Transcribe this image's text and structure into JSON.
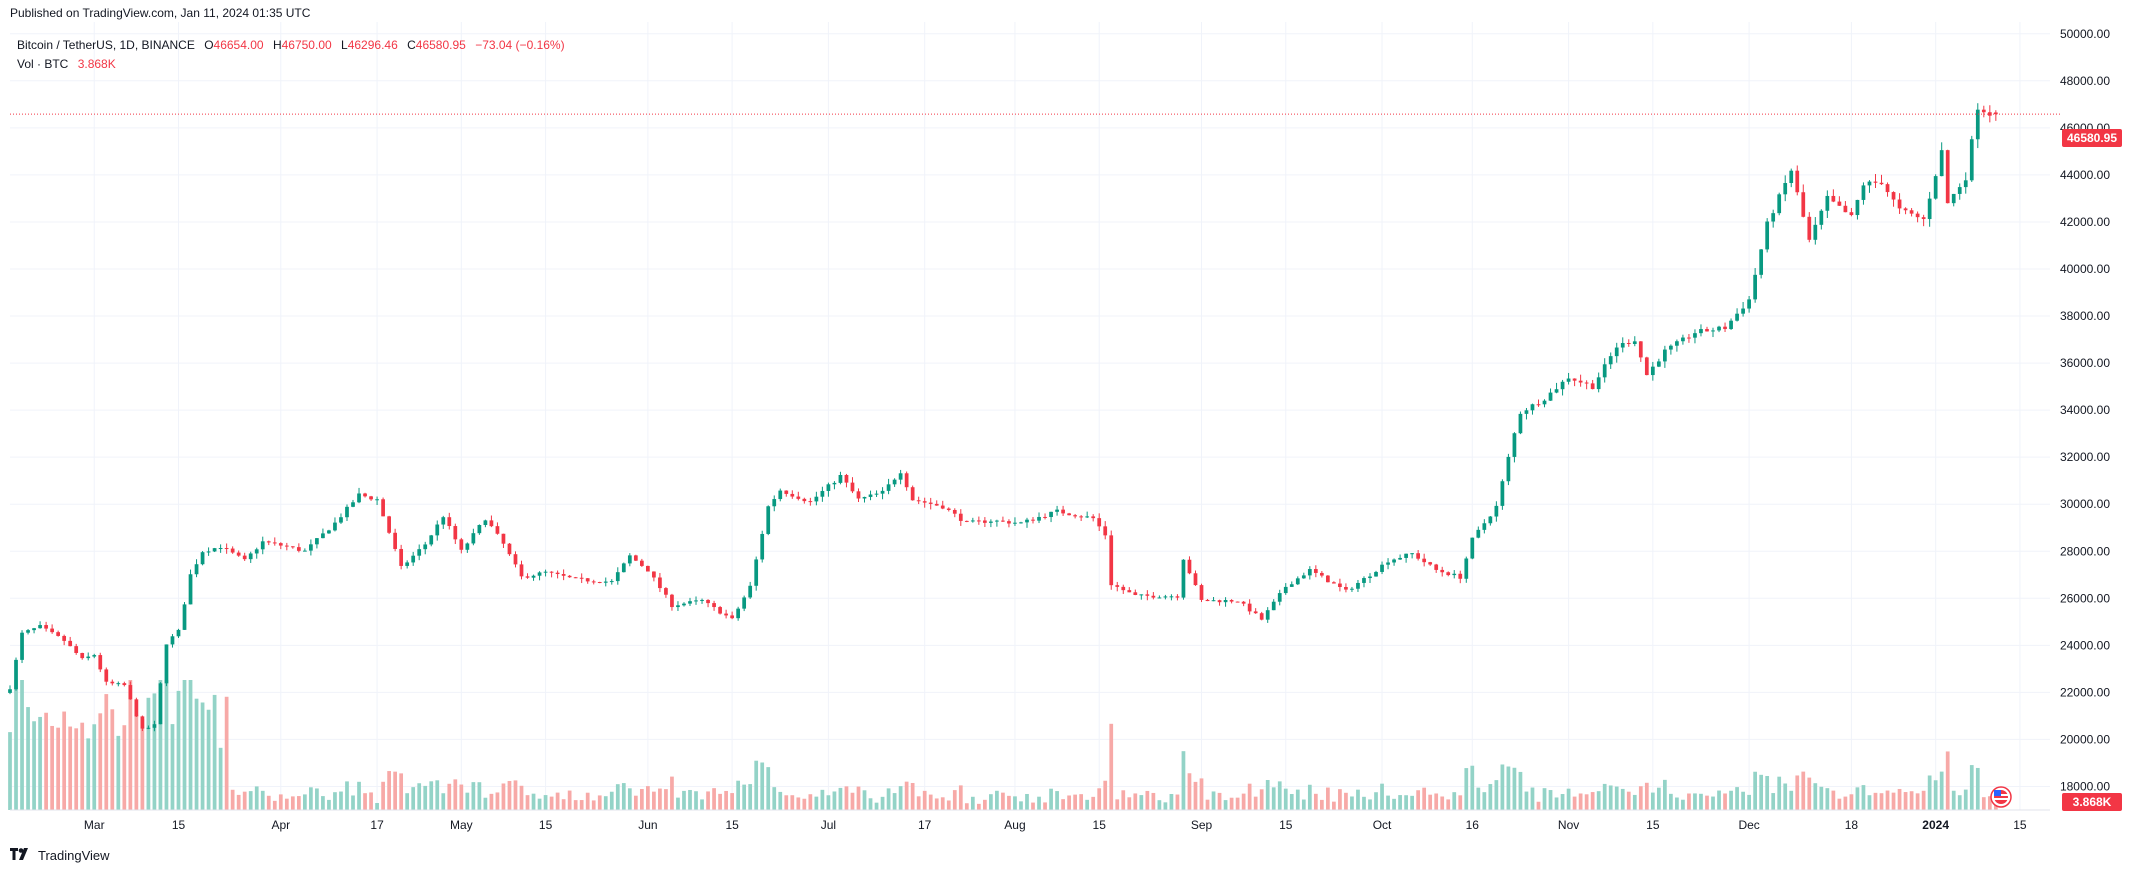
{
  "header": {
    "published": "Published on TradingView.com, Jan 11, 2024 01:35 UTC"
  },
  "legend": {
    "symbol": "Bitcoin / TetherUS, 1D, BINANCE",
    "o_label": "O",
    "o_value": "46654.00",
    "h_label": "H",
    "h_value": "46750.00",
    "l_label": "L",
    "l_value": "46296.46",
    "c_label": "C",
    "c_value": "46580.95",
    "change": "−73.04 (−0.16%)",
    "vol_label": "Vol · BTC",
    "vol_value": "3.868K"
  },
  "price_tag": "46580.95",
  "volume_tag": "3.868K",
  "brand": {
    "name": "TradingView",
    "logo": "tradingview-logo"
  },
  "colors": {
    "up": "#089981",
    "down": "#f23645",
    "up_volume": "#93d3c7",
    "down_volume": "#f7a9a7",
    "grid": "#f0f3fa",
    "price_line": "#f23645"
  },
  "chart_data": {
    "type": "candlestick",
    "title": "Bitcoin / TetherUS, 1D, BINANCE",
    "ylim": [
      17000,
      50500
    ],
    "yticks": [
      "18000.00",
      "20000.00",
      "22000.00",
      "24000.00",
      "26000.00",
      "28000.00",
      "30000.00",
      "32000.00",
      "34000.00",
      "36000.00",
      "38000.00",
      "40000.00",
      "42000.00",
      "44000.00",
      "46000.00",
      "48000.00",
      "50000.00"
    ],
    "x_range": [
      "2023-02-15",
      "2024-01-20"
    ],
    "xticks": [
      {
        "date": "2023-03-01",
        "label": "Mar",
        "bold": false
      },
      {
        "date": "2023-03-15",
        "label": "15",
        "bold": false
      },
      {
        "date": "2023-04-01",
        "label": "Apr",
        "bold": false
      },
      {
        "date": "2023-04-17",
        "label": "17",
        "bold": false
      },
      {
        "date": "2023-05-01",
        "label": "May",
        "bold": false
      },
      {
        "date": "2023-05-15",
        "label": "15",
        "bold": false
      },
      {
        "date": "2023-06-01",
        "label": "Jun",
        "bold": false
      },
      {
        "date": "2023-06-15",
        "label": "15",
        "bold": false
      },
      {
        "date": "2023-07-01",
        "label": "Jul",
        "bold": false
      },
      {
        "date": "2023-07-17",
        "label": "17",
        "bold": false
      },
      {
        "date": "2023-08-01",
        "label": "Aug",
        "bold": false
      },
      {
        "date": "2023-08-15",
        "label": "15",
        "bold": false
      },
      {
        "date": "2023-09-01",
        "label": "Sep",
        "bold": false
      },
      {
        "date": "2023-09-15",
        "label": "15",
        "bold": false
      },
      {
        "date": "2023-10-01",
        "label": "Oct",
        "bold": false
      },
      {
        "date": "2023-10-16",
        "label": "16",
        "bold": false
      },
      {
        "date": "2023-11-01",
        "label": "Nov",
        "bold": false
      },
      {
        "date": "2023-11-15",
        "label": "15",
        "bold": false
      },
      {
        "date": "2023-12-01",
        "label": "Dec",
        "bold": false
      },
      {
        "date": "2023-12-18",
        "label": "18",
        "bold": false
      },
      {
        "date": "2024-01-01",
        "label": "2024",
        "bold": true
      },
      {
        "date": "2024-01-15",
        "label": "15",
        "bold": false
      }
    ],
    "close_anchors": [
      [
        "2023-02-15",
        22200
      ],
      [
        "2023-02-17",
        24500
      ],
      [
        "2023-02-20",
        24800
      ],
      [
        "2023-02-24",
        24200
      ],
      [
        "2023-02-27",
        23400
      ],
      [
        "2023-03-01",
        23600
      ],
      [
        "2023-03-03",
        22400
      ],
      [
        "2023-03-06",
        22300
      ],
      [
        "2023-03-09",
        20400
      ],
      [
        "2023-03-11",
        20600
      ],
      [
        "2023-03-13",
        24100
      ],
      [
        "2023-03-15",
        24600
      ],
      [
        "2023-03-17",
        27000
      ],
      [
        "2023-03-19",
        28000
      ],
      [
        "2023-03-22",
        28200
      ],
      [
        "2023-03-26",
        27600
      ],
      [
        "2023-03-29",
        28400
      ],
      [
        "2023-04-02",
        28200
      ],
      [
        "2023-04-05",
        28000
      ],
      [
        "2023-04-10",
        29200
      ],
      [
        "2023-04-14",
        30400
      ],
      [
        "2023-04-17",
        30200
      ],
      [
        "2023-04-19",
        28800
      ],
      [
        "2023-04-21",
        27300
      ],
      [
        "2023-04-25",
        28300
      ],
      [
        "2023-04-28",
        29500
      ],
      [
        "2023-05-01",
        28000
      ],
      [
        "2023-05-05",
        29400
      ],
      [
        "2023-05-08",
        28300
      ],
      [
        "2023-05-11",
        26900
      ],
      [
        "2023-05-15",
        27100
      ],
      [
        "2023-05-20",
        26800
      ],
      [
        "2023-05-26",
        26700
      ],
      [
        "2023-05-29",
        27800
      ],
      [
        "2023-06-01",
        27200
      ],
      [
        "2023-06-05",
        25700
      ],
      [
        "2023-06-10",
        25900
      ],
      [
        "2023-06-15",
        25100
      ],
      [
        "2023-06-18",
        26500
      ],
      [
        "2023-06-21",
        29900
      ],
      [
        "2023-06-23",
        30600
      ],
      [
        "2023-06-28",
        30100
      ],
      [
        "2023-07-03",
        31200
      ],
      [
        "2023-07-06",
        30200
      ],
      [
        "2023-07-10",
        30500
      ],
      [
        "2023-07-13",
        31400
      ],
      [
        "2023-07-15",
        30200
      ],
      [
        "2023-07-20",
        29900
      ],
      [
        "2023-07-24",
        29200
      ],
      [
        "2023-07-28",
        29300
      ],
      [
        "2023-08-02",
        29200
      ],
      [
        "2023-08-08",
        29700
      ],
      [
        "2023-08-14",
        29400
      ],
      [
        "2023-08-16",
        28700
      ],
      [
        "2023-08-17",
        26600
      ],
      [
        "2023-08-21",
        26100
      ],
      [
        "2023-08-28",
        26100
      ],
      [
        "2023-08-29",
        27700
      ],
      [
        "2023-09-01",
        25900
      ],
      [
        "2023-09-07",
        25900
      ],
      [
        "2023-09-11",
        25100
      ],
      [
        "2023-09-15",
        26500
      ],
      [
        "2023-09-19",
        27200
      ],
      [
        "2023-09-25",
        26300
      ],
      [
        "2023-09-29",
        27000
      ],
      [
        "2023-10-02",
        27600
      ],
      [
        "2023-10-06",
        27900
      ],
      [
        "2023-10-10",
        27200
      ],
      [
        "2023-10-14",
        26900
      ],
      [
        "2023-10-16",
        28500
      ],
      [
        "2023-10-20",
        29900
      ],
      [
        "2023-10-23",
        33000
      ],
      [
        "2023-10-24",
        33900
      ],
      [
        "2023-10-28",
        34500
      ],
      [
        "2023-11-01",
        35400
      ],
      [
        "2023-11-05",
        35000
      ],
      [
        "2023-11-09",
        36700
      ],
      [
        "2023-11-12",
        37000
      ],
      [
        "2023-11-14",
        35500
      ],
      [
        "2023-11-17",
        36500
      ],
      [
        "2023-11-22",
        37300
      ],
      [
        "2023-11-27",
        37500
      ],
      [
        "2023-12-01",
        38700
      ],
      [
        "2023-12-04",
        41900
      ],
      [
        "2023-12-08",
        44200
      ],
      [
        "2023-12-11",
        41200
      ],
      [
        "2023-12-14",
        43000
      ],
      [
        "2023-12-18",
        42200
      ],
      [
        "2023-12-20",
        43600
      ],
      [
        "2023-12-23",
        43700
      ],
      [
        "2023-12-26",
        42500
      ],
      [
        "2023-12-30",
        42100
      ],
      [
        "2024-01-02",
        45000
      ],
      [
        "2024-01-03",
        42800
      ],
      [
        "2024-01-06",
        43900
      ],
      [
        "2024-01-08",
        46900
      ],
      [
        "2024-01-10",
        46600
      ],
      [
        "2024-01-11",
        46580.95
      ]
    ],
    "volume_profile_note": "",
    "last": {
      "open": 46654.0,
      "high": 46750.0,
      "low": 46296.46,
      "close": 46580.95,
      "volume_k": 3.868
    }
  }
}
